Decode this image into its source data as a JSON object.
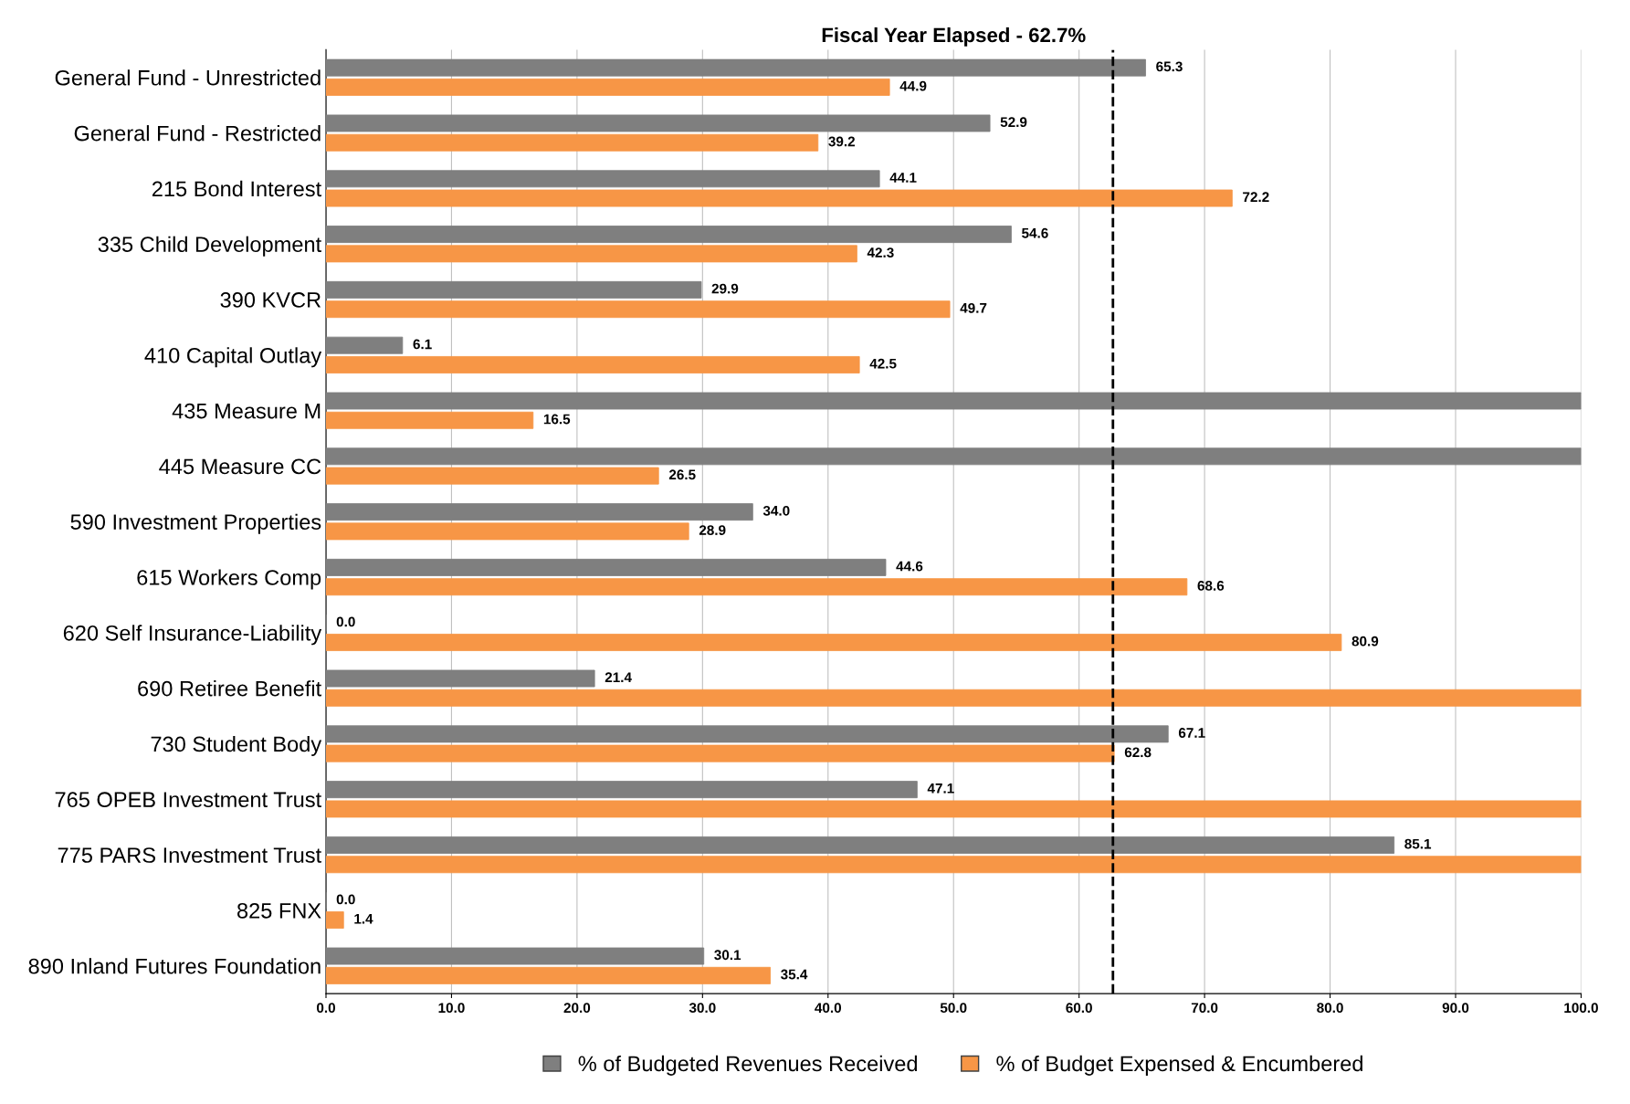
{
  "chart_data": {
    "type": "bar",
    "orientation": "horizontal",
    "title": "Fiscal Year Elapsed - 62.7%",
    "categories": [
      "General Fund - Unrestricted",
      "General Fund - Restricted",
      "215 Bond Interest",
      "335 Child Development",
      "390 KVCR",
      "410 Capital Outlay",
      "435 Measure M",
      "445 Measure CC",
      "590 Investment Properties",
      "615 Workers Comp",
      "620 Self Insurance-Liability",
      "690 Retiree Benefit",
      "730 Student Body",
      "765 OPEB Investment Trust",
      "775 PARS Investment Trust",
      "825 FNX",
      "890 Inland Futures Foundation"
    ],
    "series": [
      {
        "name": "% of Budgeted Revenues Received",
        "color": "#7f7f7f",
        "values": [
          65.3,
          52.9,
          44.1,
          54.6,
          29.9,
          6.1,
          100,
          100,
          34.0,
          44.6,
          0.0,
          21.4,
          67.1,
          47.1,
          85.1,
          0.0,
          30.1
        ],
        "value_labels": [
          "65.3",
          "52.9",
          "44.1",
          "54.6",
          "29.9",
          "6.1",
          null,
          null,
          "34.0",
          "44.6",
          "0.0",
          "21.4",
          "67.1",
          "47.1",
          "85.1",
          "0.0",
          "30.1"
        ]
      },
      {
        "name": "% of Budget Expensed & Encumbered",
        "color": "#f79646",
        "values": [
          44.9,
          39.2,
          72.2,
          42.3,
          49.7,
          42.5,
          16.5,
          26.5,
          28.9,
          68.6,
          80.9,
          100,
          62.8,
          100,
          100,
          1.4,
          35.4
        ],
        "value_labels": [
          "44.9",
          "39.2",
          "72.2",
          "42.3",
          "49.7",
          "42.5",
          "16.5",
          "26.5",
          "28.9",
          "68.6",
          "80.9",
          null,
          "62.8",
          null,
          null,
          "1.4",
          "35.4"
        ]
      }
    ],
    "xlim": [
      0,
      100
    ],
    "xticks": [
      {
        "value": 0,
        "label": "0.0"
      },
      {
        "value": 10,
        "label": "10.0"
      },
      {
        "value": 20,
        "label": "20.0"
      },
      {
        "value": 30,
        "label": "30.0"
      },
      {
        "value": 40,
        "label": "40.0"
      },
      {
        "value": 50,
        "label": "50.0"
      },
      {
        "value": 60,
        "label": "60.0"
      },
      {
        "value": 70,
        "label": "70.0"
      },
      {
        "value": 80,
        "label": "80.0"
      },
      {
        "value": 90,
        "label": "90.0"
      },
      {
        "value": 100,
        "label": "100.0"
      }
    ],
    "ref_lines": [
      {
        "axis": "x",
        "value": 62.7,
        "color": "#000000",
        "line_style": "dashed"
      }
    ],
    "grid": "x",
    "legend": "bottom"
  }
}
